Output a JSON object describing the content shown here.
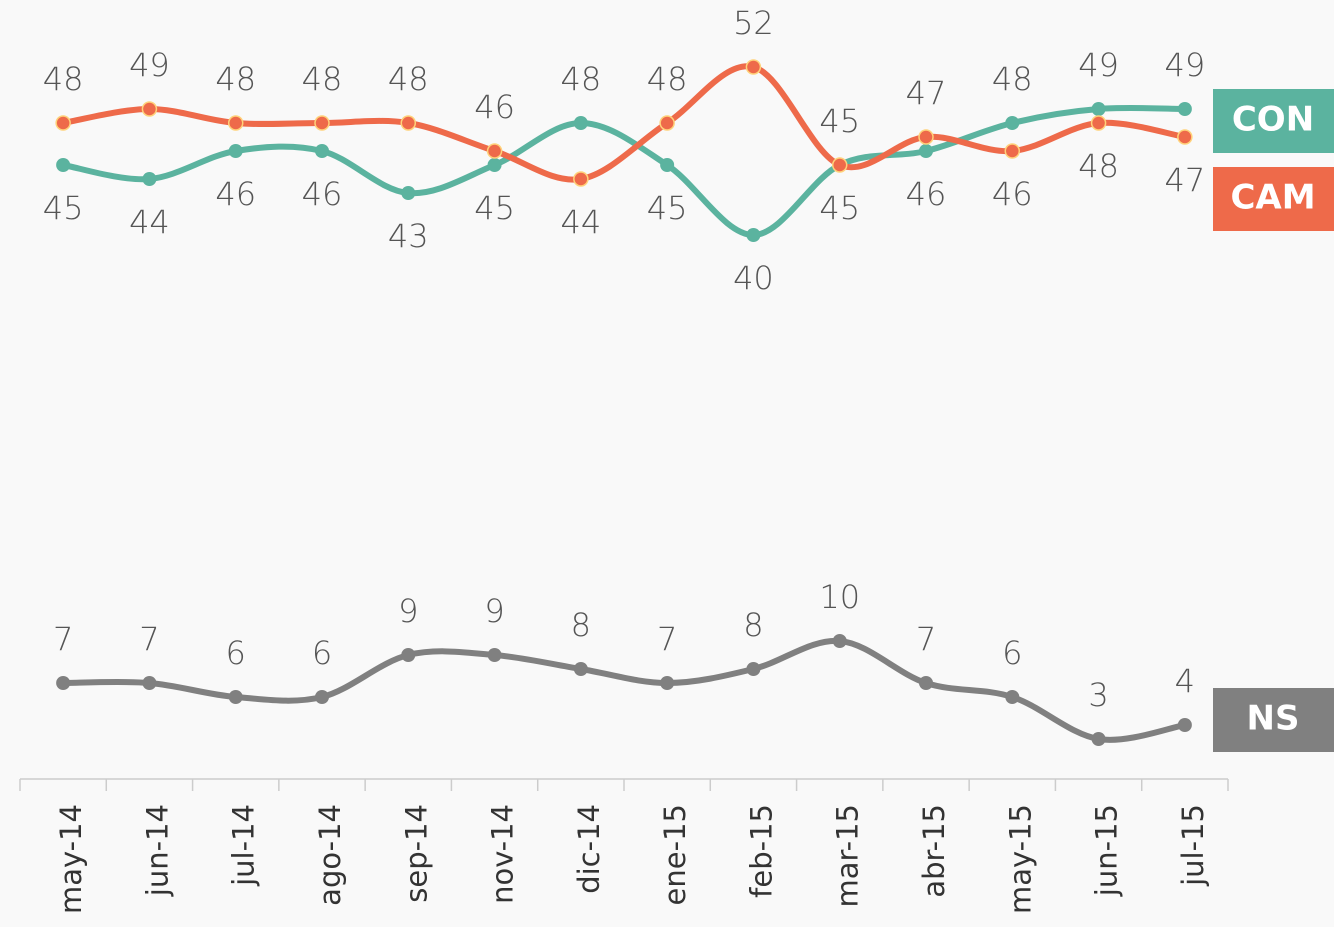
{
  "chart_data": {
    "type": "line",
    "categories": [
      "may-14",
      "jun-14",
      "jul-14",
      "ago-14",
      "sep-14",
      "nov-14",
      "dic-14",
      "ene-15",
      "feb-15",
      "mar-15",
      "abr-15",
      "may-15",
      "jun-15",
      "jul-15"
    ],
    "series": [
      {
        "name": "CON",
        "color": "#5bb39f",
        "axis": "y2",
        "values": [
          45,
          44,
          46,
          46,
          43,
          45,
          48,
          45,
          40,
          45,
          46,
          48,
          49,
          49
        ]
      },
      {
        "name": "CAM",
        "color": "#ee6a4a",
        "axis": "y2",
        "values": [
          48,
          49,
          48,
          48,
          48,
          46,
          44,
          48,
          52,
          45,
          47,
          46,
          48,
          47
        ]
      },
      {
        "name": "NS",
        "color": "#808080",
        "values": [
          7,
          7,
          6,
          6,
          9,
          9,
          8,
          7,
          8,
          10,
          7,
          6,
          3,
          4
        ]
      }
    ],
    "ylim": [
      0,
      55
    ],
    "y2lim": [
      1,
      56
    ]
  }
}
